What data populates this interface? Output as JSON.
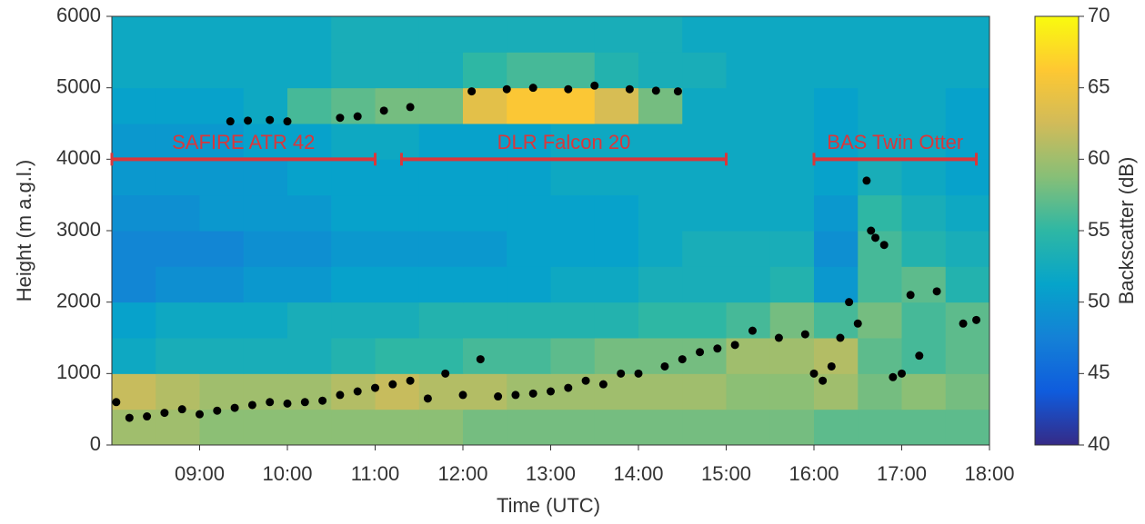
{
  "chart_data": {
    "type": "heatmap",
    "xlabel": "Time (UTC)",
    "ylabel": "Height (m a.g.l.)",
    "colorbar_label": "Backscatter (dB)",
    "xlim": [
      8,
      18
    ],
    "xticks": [
      {
        "value": 9,
        "label": "09:00"
      },
      {
        "value": 10,
        "label": "10:00"
      },
      {
        "value": 11,
        "label": "11:00"
      },
      {
        "value": 12,
        "label": "12:00"
      },
      {
        "value": 13,
        "label": "13:00"
      },
      {
        "value": 14,
        "label": "14:00"
      },
      {
        "value": 15,
        "label": "15:00"
      },
      {
        "value": 16,
        "label": "16:00"
      },
      {
        "value": 17,
        "label": "17:00"
      },
      {
        "value": 18,
        "label": "18:00"
      }
    ],
    "ylim": [
      0,
      6000
    ],
    "yticks": [
      0,
      1000,
      2000,
      3000,
      4000,
      5000,
      6000
    ],
    "clim": [
      40,
      70
    ],
    "cticks": [
      40,
      45,
      50,
      55,
      60,
      65,
      70
    ],
    "colormap": [
      "#352a87",
      "#0f5cdd",
      "#1481d6",
      "#06a4ca",
      "#2eb7a4",
      "#87bf77",
      "#d1bb59",
      "#fec832",
      "#f9fb0e"
    ],
    "x": [
      8.25,
      8.75,
      9.25,
      9.75,
      10.25,
      10.75,
      11.25,
      11.75,
      12.25,
      12.75,
      13.25,
      13.75,
      14.25,
      14.75,
      15.25,
      15.75,
      16.25,
      16.75,
      17.25,
      17.75
    ],
    "y": [
      250,
      750,
      1250,
      1750,
      2250,
      2750,
      3250,
      3750,
      4250,
      4750,
      5250,
      5750
    ],
    "z": [
      [
        60,
        60,
        59,
        59,
        59,
        59,
        59,
        59,
        58,
        58,
        58,
        58,
        58,
        58,
        58,
        58,
        57,
        57,
        57,
        57
      ],
      [
        62,
        61,
        60,
        60,
        60,
        61,
        62,
        61,
        61,
        60,
        60,
        60,
        60,
        60,
        59,
        59,
        60,
        58,
        59,
        58
      ],
      [
        52,
        53,
        53,
        53,
        53,
        54,
        55,
        55,
        56,
        56,
        57,
        58,
        58,
        58,
        60,
        60,
        61,
        57,
        56,
        57
      ],
      [
        51,
        52,
        52,
        52,
        53,
        53,
        53,
        54,
        54,
        54,
        54,
        54,
        55,
        55,
        56,
        58,
        56,
        58,
        56,
        57
      ],
      [
        48,
        49,
        49,
        50,
        50,
        51,
        51,
        51,
        51,
        51,
        52,
        52,
        53,
        53,
        53,
        54,
        50,
        56,
        57,
        54
      ],
      [
        48,
        48,
        48,
        49,
        49,
        50,
        50,
        50,
        50,
        51,
        51,
        51,
        52,
        53,
        53,
        53,
        49,
        56,
        54,
        53
      ],
      [
        49,
        49,
        50,
        50,
        50,
        51,
        51,
        51,
        51,
        51,
        51,
        51,
        52,
        52,
        52,
        52,
        50,
        55,
        53,
        52
      ],
      [
        50,
        50,
        50,
        50,
        51,
        51,
        51,
        51,
        51,
        51,
        52,
        52,
        52,
        52,
        52,
        52,
        51,
        53,
        52,
        51
      ],
      [
        50,
        50,
        50,
        51,
        51,
        52,
        52,
        51,
        51,
        51,
        52,
        52,
        52,
        52,
        52,
        52,
        51,
        52,
        52,
        51
      ],
      [
        51,
        51,
        51,
        52,
        56,
        57,
        58,
        58,
        64,
        66,
        66,
        63,
        58,
        52,
        52,
        52,
        51,
        52,
        52,
        51
      ],
      [
        52,
        52,
        52,
        52,
        52,
        53,
        53,
        53,
        55,
        56,
        56,
        54,
        53,
        53,
        52,
        52,
        52,
        52,
        52,
        52
      ],
      [
        52,
        52,
        52,
        52,
        52,
        53,
        53,
        53,
        53,
        53,
        53,
        53,
        53,
        52,
        52,
        52,
        52,
        52,
        52,
        52
      ]
    ],
    "points": {
      "color": "#000000",
      "x": [
        8.05,
        8.2,
        8.4,
        8.6,
        8.8,
        9.0,
        9.2,
        9.4,
        9.6,
        9.8,
        10.0,
        10.2,
        10.4,
        10.6,
        10.8,
        11.0,
        11.2,
        11.4,
        11.6,
        11.8,
        12.0,
        12.2,
        12.4,
        12.6,
        12.8,
        13.0,
        13.2,
        13.4,
        13.6,
        13.8,
        14.0,
        14.3,
        14.5,
        14.7,
        14.9,
        15.1,
        15.3,
        15.6,
        15.9,
        16.0,
        16.1,
        16.2,
        16.3,
        16.4,
        16.5,
        16.6,
        16.65,
        16.7,
        16.8,
        16.9,
        17.0,
        17.1,
        17.2,
        17.4,
        17.7,
        17.85,
        9.35,
        9.55,
        9.8,
        10.0,
        10.6,
        10.8,
        11.1,
        11.4,
        12.1,
        12.5,
        12.8,
        13.2,
        13.5,
        13.9,
        14.2,
        14.45
      ],
      "y": [
        600,
        380,
        400,
        450,
        500,
        430,
        480,
        520,
        560,
        600,
        580,
        600,
        620,
        700,
        750,
        800,
        850,
        900,
        650,
        1000,
        700,
        1200,
        680,
        700,
        720,
        750,
        800,
        900,
        850,
        1000,
        1000,
        1100,
        1200,
        1300,
        1350,
        1400,
        1600,
        1500,
        1550,
        1000,
        900,
        1100,
        1500,
        2000,
        1700,
        3700,
        3000,
        2900,
        2800,
        950,
        1000,
        2100,
        1250,
        2150,
        1700,
        1750,
        4530,
        4540,
        4550,
        4530,
        4580,
        4600,
        4680,
        4730,
        4950,
        4980,
        5000,
        4980,
        5030,
        4980,
        4960,
        4950
      ]
    },
    "annotation_color": "#d9373b",
    "annotations": [
      {
        "text": "SAFIRE ATR 42",
        "x0": 8,
        "x1": 11,
        "y": 4000
      },
      {
        "text": "DLR Falcon 20",
        "x0": 11.3,
        "x1": 15,
        "y": 4000
      },
      {
        "text": "BAS Twin Otter",
        "x0": 16,
        "x1": 17.85,
        "y": 4000
      }
    ]
  }
}
